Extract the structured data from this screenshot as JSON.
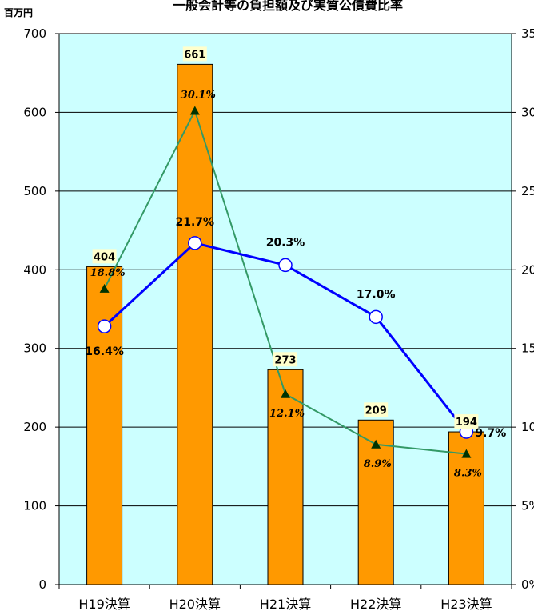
{
  "chart_data": {
    "type": "bar",
    "title": "一般会計等の負担額及び実質公債費比率",
    "left_axis_unit": "百万円",
    "categories": [
      "H19決算",
      "H20決算",
      "H21決算",
      "H22決算",
      "H23決算"
    ],
    "ylim": [
      0,
      700
    ],
    "y2lim": [
      0,
      0.35
    ],
    "left_ticks": [
      "0",
      "100",
      "200",
      "300",
      "400",
      "500",
      "600",
      "700"
    ],
    "right_ticks": [
      "0%",
      "5%",
      "10%",
      "15%",
      "20%",
      "25%",
      "30%",
      "35%"
    ],
    "grid": true,
    "series": [
      {
        "kind": "bar",
        "axis": "left",
        "values": [
          404,
          661,
          273,
          209,
          194
        ],
        "labels": [
          "404",
          "661",
          "273",
          "209",
          "194"
        ]
      },
      {
        "kind": "line",
        "axis": "right",
        "marker": "circle",
        "values": [
          0.164,
          0.217,
          0.203,
          0.17,
          0.097
        ],
        "labels": [
          "16.4%",
          "21.7%",
          "20.3%",
          "17.0%",
          "9.7%"
        ]
      },
      {
        "kind": "line",
        "axis": "right",
        "marker": "triangle",
        "values": [
          0.188,
          0.301,
          0.121,
          0.089,
          0.083
        ],
        "labels": [
          "18.8%",
          "30.1%",
          "12.1%",
          "8.9%",
          "8.3%"
        ]
      }
    ],
    "colors": {
      "plot_bg": "#ccffff",
      "bar": "#ff9900",
      "blue_line": "#0000ff",
      "green_line": "#339966",
      "triangle": "#003300",
      "bar_label_bg": "#ffffcc"
    }
  }
}
